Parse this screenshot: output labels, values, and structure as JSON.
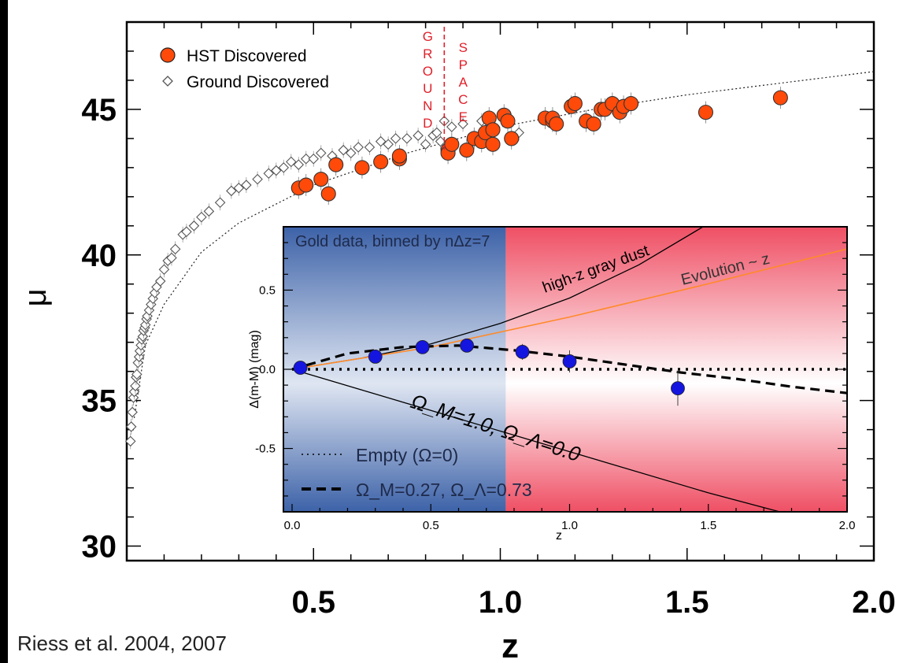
{
  "credit": "Riess et al. 2004, 2007",
  "colors": {
    "hst": "#ff4a0a",
    "ground": "#555555",
    "gold": "#1515e0",
    "evolution": "#ff8a2a",
    "ground_region": "#3d62a8",
    "space_region": "#ef4f64",
    "divider": "#e0202a",
    "text_red": "#e0202a"
  },
  "chart_data": [
    {
      "type": "scatter",
      "xlabel": "z",
      "ylabel": "μ",
      "xlim": [
        0.0,
        2.0
      ],
      "ylim": [
        29.5,
        48.0
      ],
      "xticks": [
        "0.5",
        "1.0",
        "1.5",
        "2.0"
      ],
      "yticks": [
        "30",
        "35",
        "40",
        "45"
      ],
      "xtick_values": [
        0.5,
        1.0,
        1.5,
        2.0
      ],
      "ytick_values": [
        30,
        35,
        40,
        45
      ],
      "legend_position": "top-left",
      "region_labels": {
        "ground": "GROUND",
        "space": "SPACE",
        "divider_z": 0.85
      },
      "series": [
        {
          "name": "HST Discovered",
          "marker": "circle",
          "x": [
            0.46,
            0.48,
            0.52,
            0.54,
            0.56,
            0.63,
            0.68,
            0.73,
            0.73,
            0.86,
            0.86,
            0.87,
            0.91,
            0.93,
            0.95,
            0.96,
            0.97,
            0.98,
            0.98,
            1.01,
            1.02,
            1.03,
            1.12,
            1.14,
            1.14,
            1.15,
            1.19,
            1.2,
            1.23,
            1.25,
            1.27,
            1.28,
            1.3,
            1.32,
            1.33,
            1.35,
            1.55,
            1.75
          ],
          "y": [
            42.3,
            42.4,
            42.6,
            42.1,
            43.1,
            43.0,
            43.2,
            43.3,
            43.4,
            43.6,
            43.5,
            43.8,
            43.6,
            44.0,
            43.9,
            44.2,
            44.7,
            44.3,
            43.8,
            44.8,
            44.6,
            44.0,
            44.7,
            44.6,
            44.7,
            44.5,
            45.1,
            45.2,
            44.6,
            44.5,
            45.0,
            45.0,
            45.2,
            44.9,
            45.1,
            45.2,
            44.9,
            45.4
          ]
        },
        {
          "name": "Ground Discovered",
          "marker": "diamond",
          "x": [
            0.01,
            0.012,
            0.015,
            0.018,
            0.02,
            0.023,
            0.025,
            0.027,
            0.03,
            0.033,
            0.035,
            0.038,
            0.04,
            0.043,
            0.045,
            0.048,
            0.05,
            0.053,
            0.055,
            0.06,
            0.065,
            0.07,
            0.075,
            0.08,
            0.09,
            0.1,
            0.11,
            0.12,
            0.13,
            0.15,
            0.16,
            0.18,
            0.2,
            0.22,
            0.25,
            0.28,
            0.3,
            0.32,
            0.35,
            0.38,
            0.4,
            0.42,
            0.44,
            0.46,
            0.48,
            0.5,
            0.52,
            0.55,
            0.58,
            0.6,
            0.62,
            0.65,
            0.68,
            0.7,
            0.72,
            0.75,
            0.78,
            0.8,
            0.82,
            0.83,
            0.84,
            0.85,
            0.87,
            0.9,
            0.95,
            1.05
          ],
          "y": [
            33.6,
            34.1,
            34.6,
            35.1,
            35.3,
            35.5,
            35.8,
            35.9,
            36.3,
            36.5,
            36.7,
            36.9,
            37.1,
            37.2,
            37.4,
            37.5,
            37.6,
            37.8,
            37.9,
            38.1,
            38.3,
            38.5,
            38.7,
            38.9,
            39.1,
            39.5,
            39.8,
            39.9,
            40.2,
            40.7,
            40.8,
            41.0,
            41.3,
            41.5,
            41.8,
            42.2,
            42.3,
            42.4,
            42.6,
            42.8,
            42.9,
            43.0,
            43.2,
            43.1,
            43.3,
            43.3,
            43.5,
            43.4,
            43.6,
            43.5,
            43.7,
            43.7,
            43.9,
            43.8,
            44.0,
            44.0,
            44.1,
            43.8,
            44.1,
            44.2,
            43.9,
            44.6,
            44.4,
            44.5,
            44.6,
            44.2
          ]
        }
      ],
      "model_curve": {
        "style": "dotted",
        "x": [
          0.02,
          0.05,
          0.1,
          0.2,
          0.3,
          0.5,
          0.75,
          1.0,
          1.25,
          1.5,
          1.75,
          2.0
        ],
        "y": [
          34.4,
          36.9,
          38.3,
          40.1,
          41.1,
          42.4,
          43.5,
          44.4,
          45.0,
          45.5,
          45.9,
          46.3
        ]
      }
    },
    {
      "type": "line",
      "title": "Gold data, binned by nΔz=7",
      "xlabel": "z",
      "ylabel": "Δ(m-M) (mag)",
      "xlim": [
        0.0,
        2.0
      ],
      "ylim": [
        -0.9,
        0.9
      ],
      "xticks": [
        "0.0",
        "0.5",
        "1.0",
        "1.5",
        "2.0"
      ],
      "yticks": [
        "-0.5",
        "0.0",
        "0.5"
      ],
      "xtick_values": [
        0.0,
        0.5,
        1.0,
        1.5,
        2.0
      ],
      "ytick_values": [
        -0.5,
        0.0,
        0.5
      ],
      "regions": [
        {
          "name": "ground",
          "x": [
            0.0,
            0.77
          ]
        },
        {
          "name": "space",
          "x": [
            0.77,
            2.0
          ]
        }
      ],
      "gold_points": {
        "x": [
          0.03,
          0.3,
          0.47,
          0.63,
          0.83,
          1.0,
          1.39
        ],
        "y": [
          0.01,
          0.08,
          0.14,
          0.15,
          0.11,
          0.05,
          -0.12
        ],
        "err": [
          0.02,
          0.03,
          0.04,
          0.04,
          0.05,
          0.07,
          0.11
        ]
      },
      "curves": [
        {
          "name": "high-z gray dust",
          "x": [
            0.0,
            0.25,
            0.5,
            0.75,
            1.0,
            1.25,
            1.5
          ],
          "y": [
            0.0,
            0.07,
            0.16,
            0.29,
            0.45,
            0.66,
            0.92
          ]
        },
        {
          "name": "Evolution ~ z",
          "x": [
            0.0,
            0.5,
            1.0,
            1.5,
            2.0
          ],
          "y": [
            0.0,
            0.14,
            0.33,
            0.54,
            0.76
          ]
        },
        {
          "name": "Ω_M=0.27, Ω_Λ=0.73",
          "style": "dashed",
          "x": [
            0.0,
            0.2,
            0.4,
            0.6,
            0.8,
            1.0,
            1.2,
            1.4,
            1.6,
            1.8,
            2.0
          ],
          "y": [
            0.0,
            0.1,
            0.14,
            0.15,
            0.12,
            0.08,
            0.03,
            -0.02,
            -0.06,
            -0.11,
            -0.15
          ]
        },
        {
          "name": "Empty (Ω=0)",
          "style": "dotted",
          "x": [
            0.0,
            2.0
          ],
          "y": [
            0.0,
            0.0
          ]
        },
        {
          "name": "Ω_M=1.0, Ω_Λ=0.0",
          "x": [
            0.0,
            0.5,
            1.0,
            1.5,
            1.8
          ],
          "y": [
            0.0,
            -0.26,
            -0.52,
            -0.78,
            -0.92
          ]
        }
      ],
      "legend": [
        "Empty (Ω=0)",
        "Ω_M=0.27, Ω_Λ=0.73"
      ],
      "annotation": "Ω_M=1.0, Ω_Λ=0.0"
    }
  ]
}
